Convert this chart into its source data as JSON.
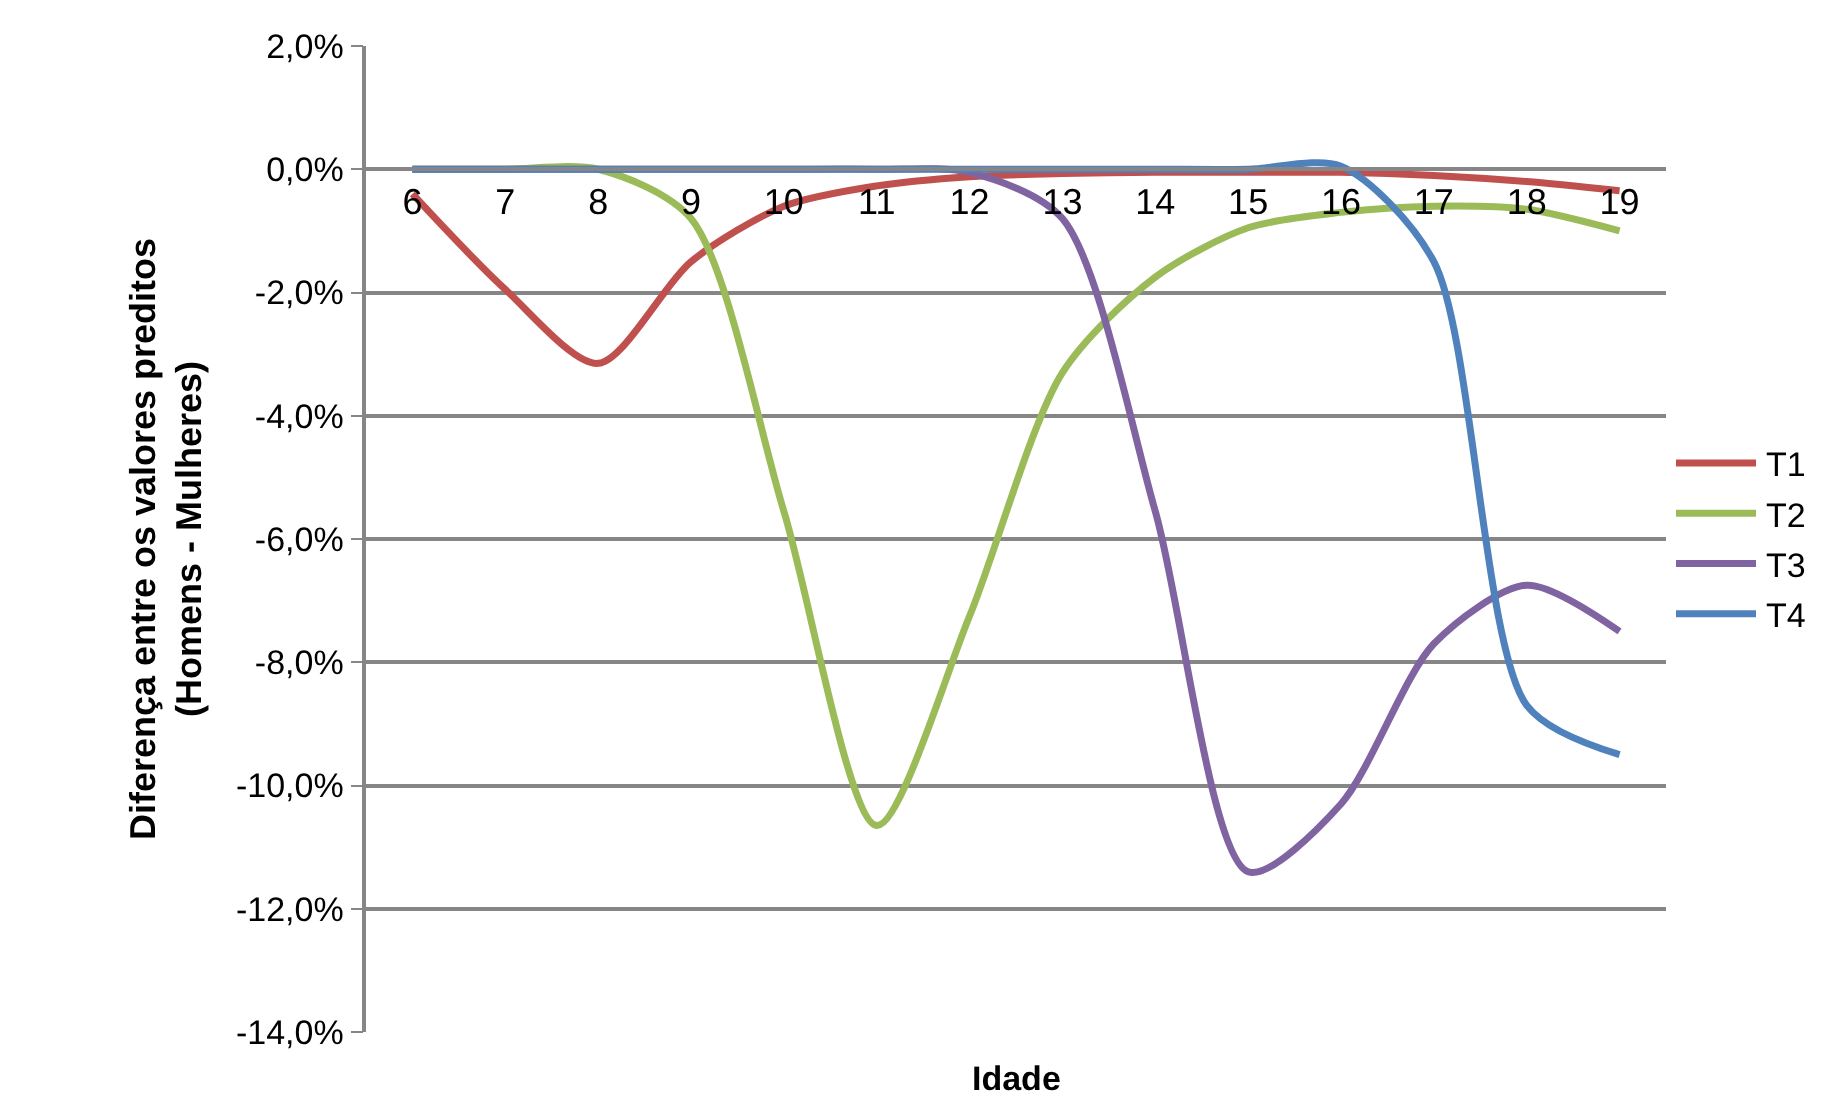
{
  "chart_data": {
    "type": "line",
    "xlabel": "Idade",
    "ylabel": "Diferença entre os valores preditos\n(Homens - Mulheres)",
    "categories": [
      "6",
      "7",
      "8",
      "9",
      "10",
      "11",
      "12",
      "13",
      "14",
      "15",
      "16",
      "17",
      "18",
      "19"
    ],
    "series": [
      {
        "name": "T1",
        "color": "#c0504d",
        "values": [
          -0.4,
          -1.95,
          -3.15,
          -1.5,
          -0.6,
          -0.27,
          -0.12,
          -0.07,
          -0.05,
          -0.05,
          -0.05,
          -0.1,
          -0.2,
          -0.35
        ]
      },
      {
        "name": "T2",
        "color": "#9bbb59",
        "values": [
          0,
          0,
          0,
          -0.8,
          -5.55,
          -10.65,
          -7.25,
          -3.3,
          -1.75,
          -0.95,
          -0.7,
          -0.6,
          -0.65,
          -1.0
        ]
      },
      {
        "name": "T3",
        "color": "#8064a2",
        "values": [
          0,
          0,
          0,
          0,
          0,
          0,
          -0.05,
          -0.8,
          -5.55,
          -11.4,
          -10.3,
          -7.7,
          -6.75,
          -7.5
        ]
      },
      {
        "name": "T4",
        "color": "#4f81bd",
        "values": [
          0,
          0,
          0,
          0,
          0,
          0,
          0,
          0,
          0,
          0,
          0.05,
          -1.5,
          -8.7,
          -9.5
        ]
      }
    ],
    "ylim": [
      -14,
      2
    ],
    "yticks": [
      {
        "value": -14,
        "label": "-14,0%"
      },
      {
        "value": -12,
        "label": "-12,0%"
      },
      {
        "value": -10,
        "label": "-10,0%"
      },
      {
        "value": -8,
        "label": "-8,0%"
      },
      {
        "value": -6,
        "label": "-6,0%"
      },
      {
        "value": -4,
        "label": "-4,0%"
      },
      {
        "value": -2,
        "label": "-2,0%"
      },
      {
        "value": 0,
        "label": "0,0%"
      },
      {
        "value": 2,
        "label": "2,0%"
      }
    ],
    "grid": "y",
    "legend": "right",
    "marker": "none",
    "line_style": "solid"
  }
}
